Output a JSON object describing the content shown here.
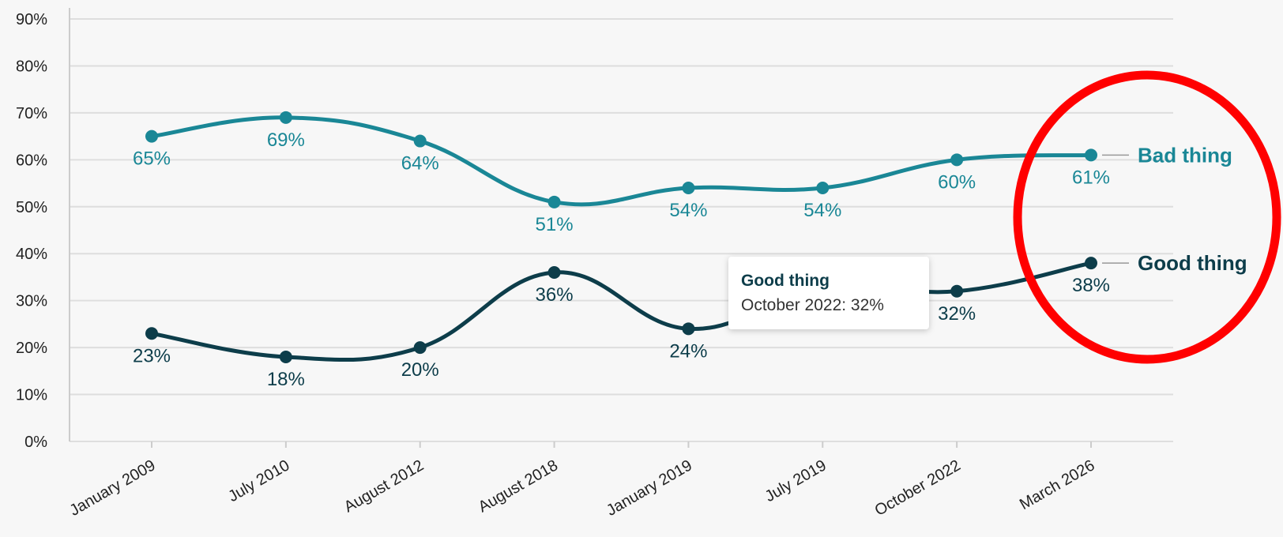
{
  "chart_data": {
    "type": "line",
    "categories": [
      "January 2009",
      "July 2010",
      "August 2012",
      "August 2018",
      "January 2019",
      "July 2019",
      "October 2022",
      "March 2026"
    ],
    "series": [
      {
        "name": "Bad thing",
        "color": "#1a8796",
        "values": [
          65,
          69,
          64,
          51,
          54,
          54,
          60,
          61
        ],
        "value_labels": [
          "65%",
          "69%",
          "64%",
          "51%",
          "54%",
          "54%",
          "60%",
          "61%"
        ]
      },
      {
        "name": "Good thing",
        "color": "#0d3d4a",
        "values": [
          23,
          18,
          20,
          36,
          24,
          33,
          32,
          38
        ],
        "value_labels": [
          "23%",
          "18%",
          "20%",
          "36%",
          "24%",
          null,
          "32%",
          "38%"
        ]
      }
    ],
    "ylim": [
      0,
      90
    ],
    "yticks": [
      {
        "value": 0,
        "label": "0%"
      },
      {
        "value": 10,
        "label": "10%"
      },
      {
        "value": 20,
        "label": "20%"
      },
      {
        "value": 30,
        "label": "30%"
      },
      {
        "value": 40,
        "label": "40%"
      },
      {
        "value": 50,
        "label": "50%"
      },
      {
        "value": 60,
        "label": "60%"
      },
      {
        "value": 70,
        "label": "70%"
      },
      {
        "value": 80,
        "label": "80%"
      },
      {
        "value": 90,
        "label": "90%"
      }
    ],
    "grid": true,
    "tooltip": {
      "title": "Good thing",
      "text": "October 2022: 32%"
    }
  }
}
